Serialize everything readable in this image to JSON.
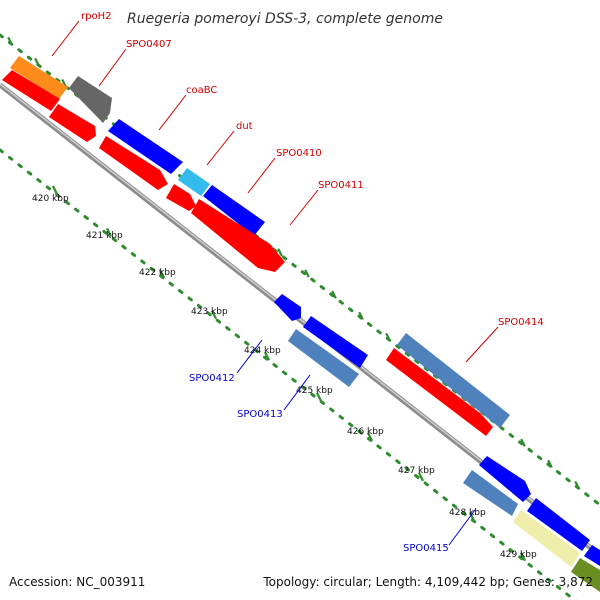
{
  "title": "Ruegeria pomeroyi DSS-3, complete genome",
  "footer": {
    "accession": "Accession: NC_003911",
    "summary": "Topology: circular; Length: 4,109,442 bp; Genes: 3,872"
  },
  "colors": {
    "backbone": "#8c8c8c",
    "dots": "#2e8b2e",
    "tick": "#2e8b2e",
    "label_plus": "#cc0000",
    "label_minus": "#0000cc",
    "red": "#ff0000",
    "blue": "#0000ff",
    "orange": "#ff8c1a",
    "gray": "#666666",
    "lightblue": "#33bbee",
    "steelblue": "#4f81bd",
    "khaki": "#eeeeaa",
    "olive": "#6b8e23"
  },
  "ticks": [
    {
      "label": "420 kbp"
    },
    {
      "label": "421 kbp"
    },
    {
      "label": "422 kbp"
    },
    {
      "label": "423 kbp"
    },
    {
      "label": "424 kbp"
    },
    {
      "label": "425 kbp"
    },
    {
      "label": "426 kbp"
    },
    {
      "label": "427 kbp"
    },
    {
      "label": "428 kbp"
    },
    {
      "label": "429 kbp"
    }
  ],
  "labels": [
    {
      "text": "rpoH2",
      "strand": "plus"
    },
    {
      "text": "SPO0407",
      "strand": "plus"
    },
    {
      "text": "coaBC",
      "strand": "plus"
    },
    {
      "text": "dut",
      "strand": "plus"
    },
    {
      "text": "SPO0410",
      "strand": "plus"
    },
    {
      "text": "SPO0411",
      "strand": "plus"
    },
    {
      "text": "SPO0414",
      "strand": "plus"
    },
    {
      "text": "SPO0412",
      "strand": "minus"
    },
    {
      "text": "SPO0413",
      "strand": "minus"
    },
    {
      "text": "SPO0415",
      "strand": "minus"
    }
  ]
}
